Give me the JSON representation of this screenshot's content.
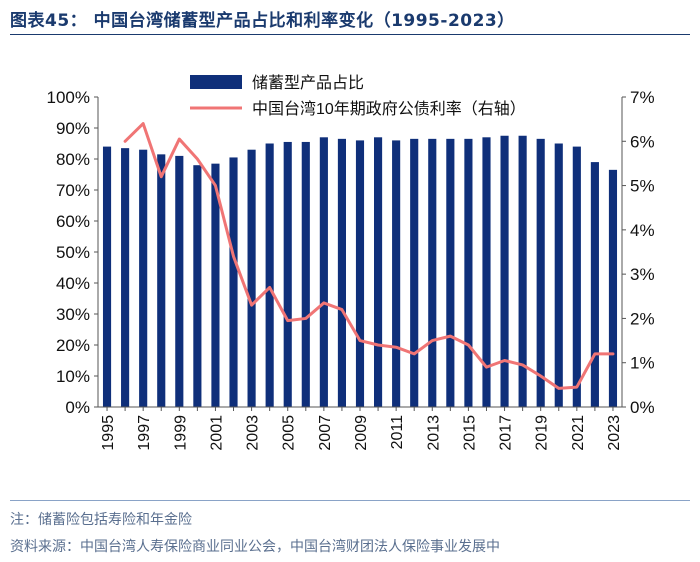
{
  "title": "图表45： 中国台湾储蓄型产品占比和利率变化（1995-2023）",
  "footer": {
    "note": "注：储蓄险包括寿险和年金险",
    "source": "资料来源：中国台湾人寿保险商业同业公会，中国台湾财团法人保险事业发展中"
  },
  "chart_data": {
    "type": "bar",
    "title": "中国台湾储蓄型产品占比和利率变化（1995-2023）",
    "categories": [
      "1995",
      "1996",
      "1997",
      "1998",
      "1999",
      "2000",
      "2001",
      "2002",
      "2003",
      "2004",
      "2005",
      "2006",
      "2007",
      "2008",
      "2009",
      "2010",
      "2011",
      "2012",
      "2013",
      "2014",
      "2015",
      "2016",
      "2017",
      "2018",
      "2019",
      "2020",
      "2021",
      "2022",
      "2023"
    ],
    "x_tick_labels": [
      "1995",
      "1997",
      "1999",
      "2001",
      "2003",
      "2005",
      "2007",
      "2009",
      "2011",
      "2013",
      "2015",
      "2017",
      "2019",
      "2021",
      "2023"
    ],
    "series": [
      {
        "name": "储蓄型产品占比",
        "type": "bar",
        "axis": "left",
        "color": "#0f2f7a",
        "values": [
          84,
          83.5,
          83,
          81.5,
          81,
          78,
          78.5,
          80.5,
          83,
          85,
          85.5,
          85.5,
          87,
          86.5,
          86,
          87,
          86,
          86.5,
          86.5,
          86.5,
          86.5,
          87,
          87.5,
          87.5,
          86.5,
          85,
          84,
          79,
          76.5
        ]
      },
      {
        "name": "中国台湾10年期政府公债利率（右轴）",
        "type": "line",
        "axis": "right",
        "color": "#f07575",
        "values": [
          null,
          6.0,
          6.4,
          5.2,
          6.05,
          5.6,
          5.0,
          3.4,
          2.3,
          2.7,
          1.95,
          2.0,
          2.35,
          2.2,
          1.5,
          1.4,
          1.35,
          1.2,
          1.5,
          1.6,
          1.4,
          0.9,
          1.05,
          0.95,
          0.7,
          0.42,
          0.45,
          1.2,
          1.2
        ]
      }
    ],
    "y_left": {
      "min": 0,
      "max": 100,
      "step": 10,
      "tick_labels": [
        "0%",
        "10%",
        "20%",
        "30%",
        "40%",
        "50%",
        "60%",
        "70%",
        "80%",
        "90%",
        "100%"
      ]
    },
    "y_right": {
      "min": 0,
      "max": 7,
      "step": 1,
      "tick_labels": [
        "0%",
        "1%",
        "2%",
        "3%",
        "4%",
        "5%",
        "6%",
        "7%"
      ]
    },
    "legend": {
      "position": "top-center",
      "entries": [
        "储蓄型产品占比",
        "中国台湾10年期政府公债利率（右轴）"
      ]
    },
    "grid": false
  }
}
